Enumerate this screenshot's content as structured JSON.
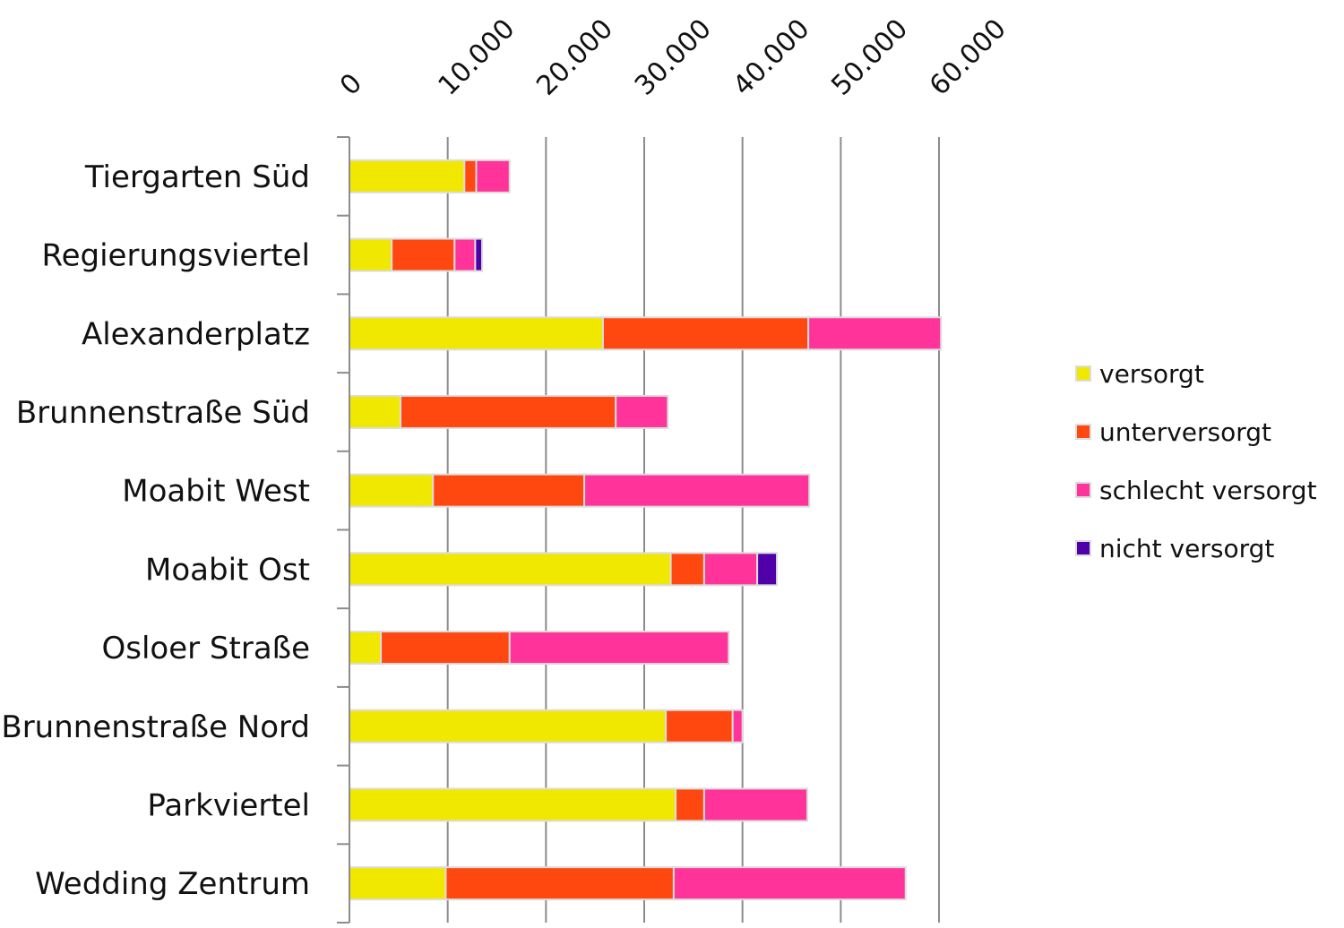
{
  "chart_data": {
    "type": "bar",
    "orientation": "horizontal",
    "stacked": true,
    "title": "",
    "xlabel": "",
    "ylabel": "",
    "xlim": [
      0,
      60000
    ],
    "x_ticks": [
      0,
      10000,
      20000,
      30000,
      40000,
      50000,
      60000
    ],
    "x_tick_labels": [
      "0",
      "10.000",
      "20.000",
      "30.000",
      "40.000",
      "50.000",
      "60.000"
    ],
    "x_axis_position": "top",
    "grid": "vertical",
    "legend_position": "right",
    "categories": [
      "Tiergarten Süd",
      "Regierungsviertel",
      "Alexanderplatz",
      "Brunnenstraße Süd",
      "Moabit West",
      "Moabit Ost",
      "Osloer Straße",
      "Brunnenstraße Nord",
      "Parkviertel",
      "Wedding Zentrum"
    ],
    "series": [
      {
        "name": "versorgt",
        "color": "#f0e800",
        "values": [
          11700,
          4300,
          25800,
          5200,
          8500,
          32700,
          3200,
          32200,
          33200,
          9800
        ]
      },
      {
        "name": "unterversorgt",
        "color": "#ff4810",
        "values": [
          1200,
          6400,
          20900,
          21900,
          15400,
          3400,
          13100,
          6800,
          2900,
          23200
        ]
      },
      {
        "name": "schlecht versorgt",
        "color": "#ff3399",
        "values": [
          3400,
          2100,
          13500,
          5300,
          22900,
          5400,
          22300,
          1000,
          10500,
          23600
        ]
      },
      {
        "name": "nicht versorgt",
        "color": "#5000a8",
        "values": [
          0,
          700,
          0,
          0,
          0,
          2000,
          0,
          0,
          0,
          0
        ]
      }
    ]
  }
}
